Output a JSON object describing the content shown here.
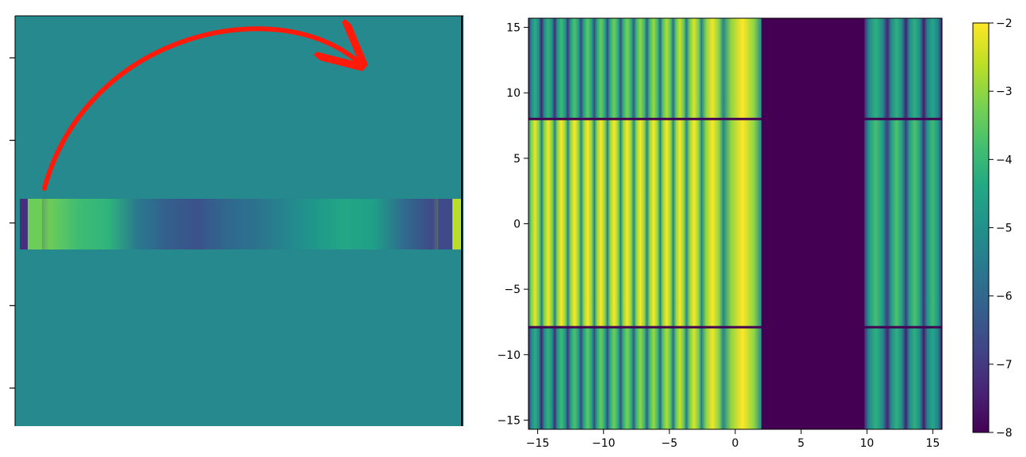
{
  "chart_data": [
    {
      "type": "heatmap",
      "panel": "left",
      "xlabel": "",
      "ylabel": "",
      "title": "",
      "yticks_shown_without_labels": 5,
      "background_color": "#26898e",
      "stripe": {
        "description_colors": [
          "#46307e",
          "#6ccd59",
          "#3fbc73",
          "#2fb47c",
          "#2a788e",
          "#355f8d",
          "#3b528b",
          "#30688e",
          "#2c728e",
          "#25858e",
          "#1f988b",
          "#22a785",
          "#1fa088",
          "#2f6c8e",
          "#3e4a89",
          "#b8de29"
        ]
      },
      "annotation": {
        "type": "arrow",
        "color": "#ff1a0a"
      }
    },
    {
      "type": "heatmap",
      "panel": "right",
      "title": "",
      "xlabel": "",
      "ylabel": "",
      "xlim": [
        -15.7,
        15.7
      ],
      "ylim": [
        -15.7,
        15.7
      ],
      "xticks": [
        "-15",
        "-10",
        "-5",
        "0",
        "5",
        "10",
        "15"
      ],
      "yticks": [
        "-15",
        "-10",
        "-5",
        "0",
        "5",
        "10",
        "15"
      ],
      "xtick_values": [
        -15,
        -10,
        -5,
        0,
        5,
        10,
        15
      ],
      "ytick_values": [
        -15,
        -10,
        -5,
        0,
        5,
        10,
        15
      ],
      "band_centers": [
        -15.2,
        -14.2,
        -13.2,
        -12.2,
        -11.2,
        -10.2,
        -9.2,
        -8.2,
        -7.2,
        -6.2,
        -5.2,
        -4.2,
        -3.2,
        -1.9,
        0.1
      ],
      "band_peaks_outer": [
        -4.3,
        -4.1,
        -3.9,
        -3.7,
        -3.5,
        -3.4,
        -3.3,
        -3.2,
        -3.0,
        -2.9,
        -2.7,
        -2.5,
        -2.3,
        -2.1,
        -2.0
      ],
      "band_peaks_inner": [
        -2.2,
        -2.1,
        -2.0,
        -2.0,
        -2.0,
        -2.0,
        -2.0,
        -2.0,
        -2.0,
        -2.0,
        -2.0,
        -2.0,
        -2.0,
        -2.0,
        -2.0
      ],
      "right_band_centers": [
        10.8,
        12.3,
        13.6,
        15.0
      ],
      "right_band_peaks_outer": [
        -4.2,
        -4.2,
        -4.2,
        -4.4
      ],
      "right_band_peaks_inner": [
        -3.8,
        -3.7,
        -3.7,
        -3.9
      ],
      "dark_gap": [
        2.0,
        9.8
      ],
      "horizontal_cuts": [
        8.0,
        -7.9
      ],
      "colorbar": {
        "range": [
          -8,
          -2
        ],
        "ticks": [
          "−2",
          "−3",
          "−4",
          "−5",
          "−6",
          "−7",
          "−8"
        ],
        "tick_values": [
          -2,
          -3,
          -4,
          -5,
          -6,
          -7,
          -8
        ],
        "colormap": "viridis"
      }
    }
  ]
}
